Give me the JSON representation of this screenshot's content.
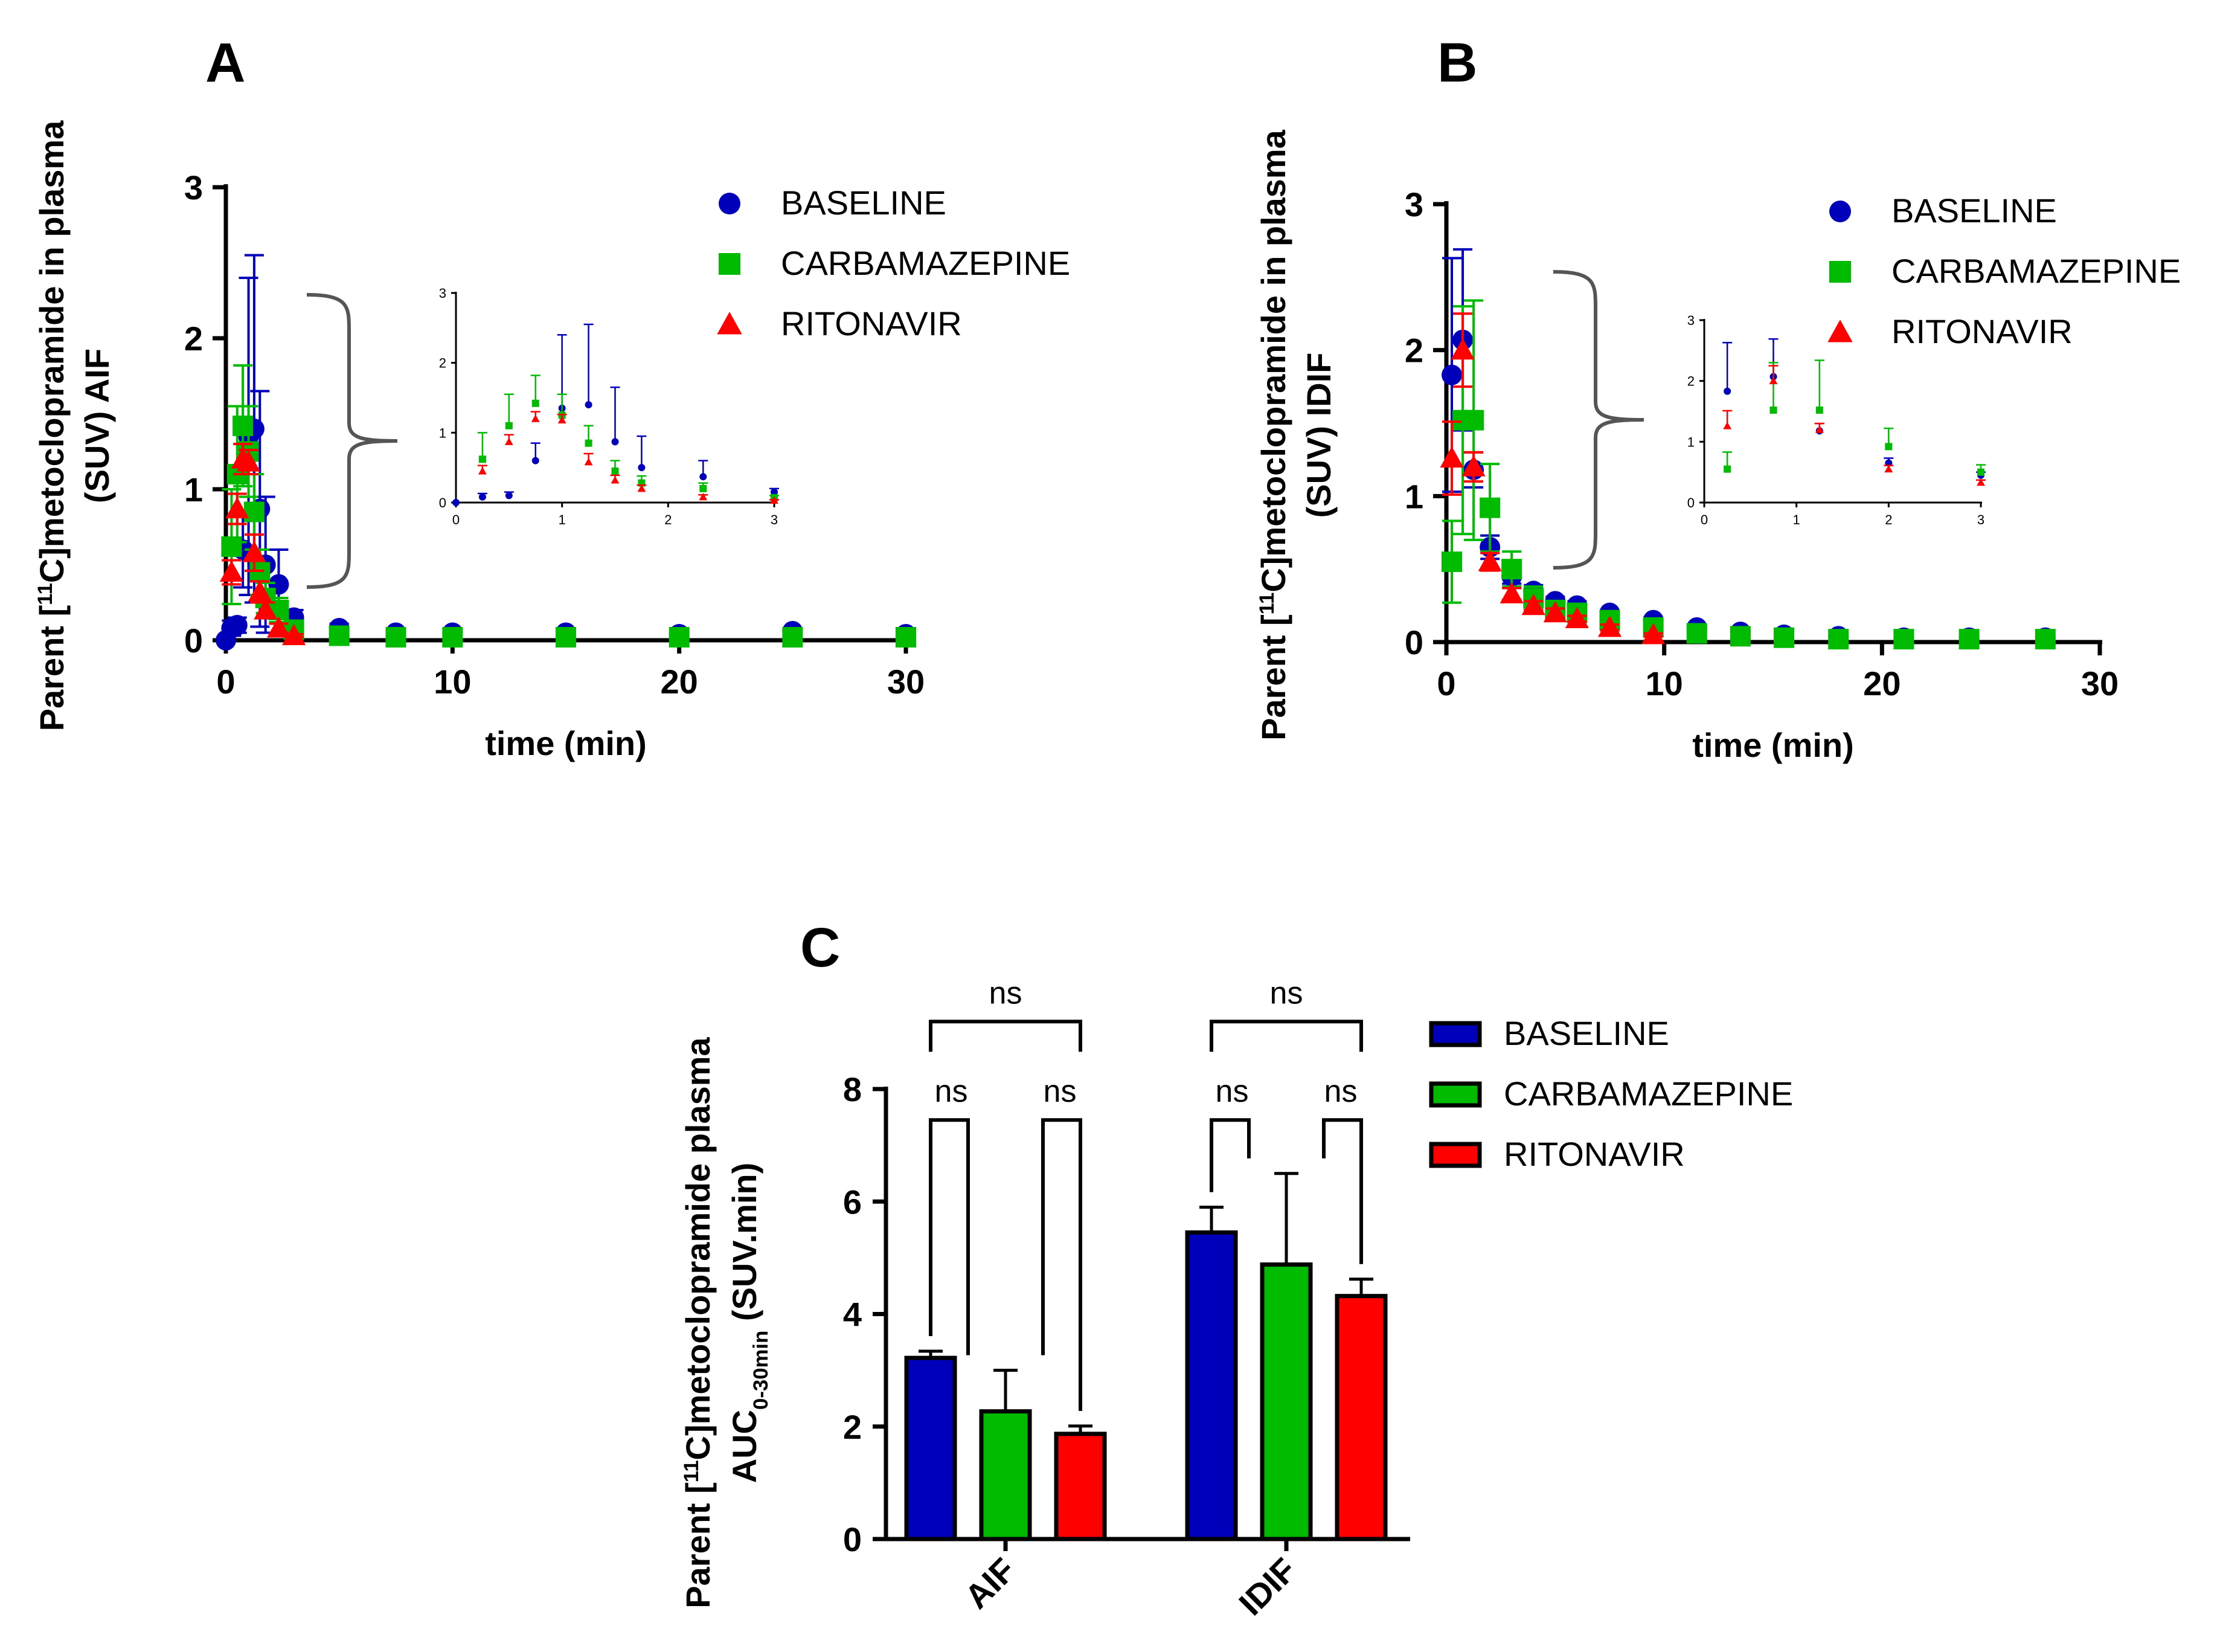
{
  "colors": {
    "baseline": "#0000bb",
    "carbamazepine": "#00bb00",
    "ritonavir": "#ff0000",
    "axis": "#000000"
  },
  "legend_labels": [
    "BASELINE",
    "CARBAMAZEPINE",
    "RITONAVIR"
  ],
  "chart_data": [
    {
      "panel": "A",
      "type": "scatter",
      "xlabel": "time (min)",
      "ylabel_lines": [
        "Parent [11C]metoclopramide in plasma",
        "(SUV) AIF"
      ],
      "ylabel_pre": "Parent [",
      "ylabel_sup": "11",
      "ylabel_post": "C]metoclopramide in plasma",
      "ylabel_line2": "(SUV) AIF",
      "xlim": [
        0,
        30
      ],
      "ylim": [
        0,
        3
      ],
      "xticks": [
        "0",
        "10",
        "20",
        "30"
      ],
      "yticks": [
        "0",
        "1",
        "2",
        "3"
      ],
      "series": [
        {
          "name": "BASELINE",
          "x": [
            0,
            0.25,
            0.5,
            0.75,
            1.0,
            1.25,
            1.5,
            1.75,
            2.33,
            3,
            5,
            7.5,
            10,
            15,
            20,
            25,
            30
          ],
          "y": [
            0,
            0.08,
            0.1,
            0.6,
            1.35,
            1.4,
            0.87,
            0.5,
            0.37,
            0.15,
            0.08,
            0.05,
            0.05,
            0.05,
            0.04,
            0.06,
            0.04
          ],
          "err": [
            0,
            0.05,
            0.05,
            0.25,
            1.05,
            1.15,
            0.78,
            0.45,
            0.23,
            0.05,
            0.03,
            0.02,
            0.02,
            0.02,
            0.02,
            0.02,
            0.02
          ]
        },
        {
          "name": "CARBAMAZEPINE",
          "x": [
            0.25,
            0.5,
            0.75,
            1.0,
            1.25,
            1.5,
            1.75,
            2.33,
            3,
            5,
            7.5,
            10,
            15,
            20,
            25,
            30
          ],
          "y": [
            0.62,
            1.1,
            1.42,
            1.25,
            0.85,
            0.45,
            0.28,
            0.2,
            0.07,
            0.03,
            0.02,
            0.02,
            0.02,
            0.02,
            0.02,
            0.02
          ],
          "err": [
            0.38,
            0.45,
            0.4,
            0.3,
            0.25,
            0.15,
            0.1,
            0.08,
            0.03,
            0.01,
            0.01,
            0.01,
            0.01,
            0.01,
            0.01,
            0.01
          ]
        },
        {
          "name": "RITONAVIR",
          "x": [
            0.25,
            0.5,
            0.75,
            1.0,
            1.25,
            1.5,
            1.75,
            2.33,
            3
          ],
          "y": [
            0.45,
            0.87,
            1.2,
            1.18,
            0.58,
            0.32,
            0.2,
            0.08,
            0.03
          ],
          "err": [
            0.08,
            0.1,
            0.1,
            0.08,
            0.12,
            0.07,
            0.05,
            0.03,
            0.01
          ]
        }
      ],
      "inset": {
        "xlim": [
          0,
          3
        ],
        "ylim": [
          0,
          3
        ],
        "xticks": [
          "0",
          "1",
          "2",
          "3"
        ],
        "yticks": [
          "0",
          "1",
          "2",
          "3"
        ]
      }
    },
    {
      "panel": "B",
      "type": "scatter",
      "xlabel": "time (min)",
      "ylabel_pre": "Parent [",
      "ylabel_sup": "11",
      "ylabel_post": "C]metoclopramide in plasma",
      "ylabel_line2": "(SUV) IDIF",
      "xlim": [
        0,
        30
      ],
      "ylim": [
        0,
        3
      ],
      "xticks": [
        "0",
        "10",
        "20",
        "30"
      ],
      "yticks": [
        "0",
        "1",
        "2",
        "3"
      ],
      "series": [
        {
          "name": "BASELINE",
          "x": [
            0.25,
            0.75,
            1.25,
            2,
            3,
            4,
            5,
            6,
            7.5,
            9.5,
            11.5,
            13.5,
            15.5,
            18,
            21,
            24,
            27.5
          ],
          "y": [
            1.83,
            2.07,
            1.18,
            0.65,
            0.45,
            0.35,
            0.28,
            0.25,
            0.2,
            0.15,
            0.1,
            0.07,
            0.05,
            0.04,
            0.03,
            0.03,
            0.03
          ],
          "err": [
            0.8,
            0.62,
            0.12,
            0.08,
            0.05,
            0.04,
            0.03,
            0.03,
            0.02,
            0.02,
            0.01,
            0.01,
            0.01,
            0.01,
            0.01,
            0.01,
            0.01
          ]
        },
        {
          "name": "CARBAMAZEPINE",
          "x": [
            0.25,
            0.75,
            1.25,
            2,
            3,
            4,
            5,
            6,
            7.5,
            9.5,
            11.5,
            13.5,
            15.5,
            18,
            21,
            24,
            27.5
          ],
          "y": [
            0.55,
            1.52,
            1.52,
            0.92,
            0.5,
            0.3,
            0.22,
            0.2,
            0.15,
            0.1,
            0.06,
            0.04,
            0.03,
            0.02,
            0.02,
            0.02,
            0.02
          ],
          "err": [
            0.28,
            0.78,
            0.82,
            0.3,
            0.12,
            0.08,
            0.05,
            0.04,
            0.03,
            0.02,
            0.02,
            0.01,
            0.01,
            0.01,
            0.01,
            0.01,
            0.01
          ]
        },
        {
          "name": "RITONAVIR",
          "x": [
            0.25,
            0.75,
            1.25,
            2,
            3,
            4,
            5,
            6,
            7.5,
            9.5
          ],
          "y": [
            1.26,
            2.0,
            1.2,
            0.55,
            0.33,
            0.25,
            0.2,
            0.16,
            0.1,
            0.05
          ],
          "err": [
            0.25,
            0.25,
            0.1,
            0.06,
            0.04,
            0.03,
            0.03,
            0.02,
            0.02,
            0.01
          ]
        }
      ],
      "inset": {
        "xlim": [
          0,
          3
        ],
        "ylim": [
          0,
          3
        ],
        "xticks": [
          "0",
          "1",
          "2",
          "3"
        ],
        "yticks": [
          "0",
          "1",
          "2",
          "3"
        ]
      }
    },
    {
      "panel": "C",
      "type": "bar",
      "ylabel_pre": "Parent [",
      "ylabel_sup": "11",
      "ylabel_post": "C]metoclopramide plasma",
      "ylabel2_pre": "AUC",
      "ylabel2_sub": "0-30min",
      "ylabel2_post": " (SUV.min)",
      "categories": [
        "AIF",
        "IDIF"
      ],
      "ylim": [
        0,
        8
      ],
      "yticks": [
        "0",
        "2",
        "4",
        "6",
        "8"
      ],
      "series": [
        {
          "name": "BASELINE",
          "values": [
            3.22,
            5.45
          ],
          "err": [
            0.12,
            0.45
          ]
        },
        {
          "name": "CARBAMAZEPINE",
          "values": [
            2.27,
            4.88
          ],
          "err": [
            0.73,
            1.62
          ]
        },
        {
          "name": "RITONAVIR",
          "values": [
            1.87,
            4.32
          ],
          "err": [
            0.14,
            0.3
          ]
        }
      ],
      "significance": [
        "ns",
        "ns",
        "ns",
        "ns",
        "ns",
        "ns"
      ]
    }
  ]
}
